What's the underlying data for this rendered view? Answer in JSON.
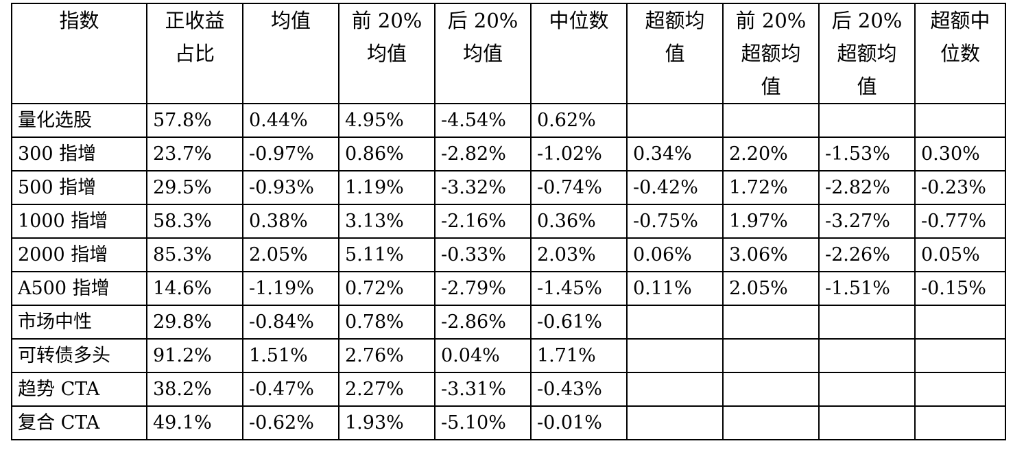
{
  "headers": [
    [
      "指数"
    ],
    [
      "正收益",
      "占比"
    ],
    [
      "均值"
    ],
    [
      "前 20%",
      "均值"
    ],
    [
      "后 20%",
      "均值"
    ],
    [
      "中位数"
    ],
    [
      "超额均",
      "值"
    ],
    [
      "前 20%",
      "超额均",
      "值"
    ],
    [
      "后 20%",
      "超额均",
      "值"
    ],
    [
      "超额中",
      "位数"
    ]
  ],
  "rows": [
    [
      "量化选股",
      "57.8%",
      "0.44%",
      "4.95%",
      "-4.54%",
      "0.62%",
      "",
      "",
      "",
      ""
    ],
    [
      "300 指增",
      "23.7%",
      "-0.97%",
      "0.86%",
      "-2.82%",
      "-1.02%",
      "0.34%",
      "2.20%",
      "-1.53%",
      "0.30%"
    ],
    [
      "500 指增",
      "29.5%",
      "-0.93%",
      "1.19%",
      "-3.32%",
      "-0.74%",
      "-0.42%",
      "1.72%",
      "-2.82%",
      "-0.23%"
    ],
    [
      "1000 指增",
      "58.3%",
      "0.38%",
      "3.13%",
      "-2.16%",
      "0.36%",
      "-0.75%",
      "1.97%",
      "-3.27%",
      "-0.77%"
    ],
    [
      "2000 指增",
      "85.3%",
      "2.05%",
      "5.11%",
      "-0.33%",
      "2.03%",
      "0.06%",
      "3.06%",
      "-2.26%",
      "0.05%"
    ],
    [
      "A500 指增",
      "14.6%",
      "-1.19%",
      "0.72%",
      "-2.79%",
      "-1.45%",
      "0.11%",
      "2.05%",
      "-1.51%",
      "-0.15%"
    ],
    [
      "市场中性",
      "29.8%",
      "-0.84%",
      "0.78%",
      "-2.86%",
      "-0.61%",
      "",
      "",
      "",
      ""
    ],
    [
      "可转债多头",
      "91.2%",
      "1.51%",
      "2.76%",
      "0.04%",
      "1.71%",
      "",
      "",
      "",
      ""
    ],
    [
      "趋势 CTA",
      "38.2%",
      "-0.47%",
      "2.27%",
      "-3.31%",
      "-0.43%",
      "",
      "",
      "",
      ""
    ],
    [
      "复合 CTA",
      "49.1%",
      "-0.62%",
      "1.93%",
      "-5.10%",
      "-0.01%",
      "",
      "",
      "",
      ""
    ]
  ]
}
